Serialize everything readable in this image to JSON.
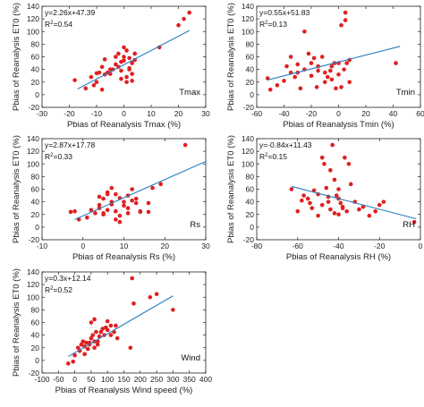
{
  "chart_data": [
    {
      "type": "scatter",
      "variable": "Tmax",
      "xlabel": "Pbias of Reanalysis Tmax (%)",
      "ylabel": "Pbias of Reanalysis ET0 (%)",
      "xlim": [
        -30,
        30
      ],
      "ylim": [
        -20,
        140
      ],
      "xticks": [
        -30,
        -20,
        -10,
        0,
        10,
        20,
        30
      ],
      "yticks": [
        -20,
        0,
        20,
        40,
        60,
        80,
        100,
        120,
        140
      ],
      "equation": "y=2.26x+47.39",
      "r2_text": "R",
      "r2_value": "=0.54",
      "fit": {
        "slope": 2.26,
        "intercept": 47.39,
        "x_range": [
          -17,
          24
        ]
      },
      "series_color": "#e02020",
      "line_color": "#2a7fc0",
      "x": [
        -18,
        -14,
        -12,
        -11,
        -10,
        -10,
        -9,
        -8,
        -7,
        -7,
        -6,
        -5,
        -4,
        -3,
        -3,
        -2,
        -2,
        -1,
        -1,
        0,
        0,
        0,
        1,
        1,
        2,
        2,
        3,
        3,
        3,
        4,
        4,
        -1,
        2,
        13,
        20,
        22,
        24,
        -8,
        1,
        -5
      ],
      "y": [
        23,
        10,
        28,
        15,
        34,
        20,
        35,
        44,
        32,
        56,
        35,
        33,
        40,
        48,
        60,
        44,
        65,
        38,
        52,
        54,
        60,
        75,
        70,
        28,
        40,
        58,
        22,
        33,
        50,
        65,
        55,
        25,
        42,
        75,
        110,
        120,
        130,
        8,
        20,
        40
      ]
    },
    {
      "type": "scatter",
      "variable": "Tmin",
      "xlabel": "Pbias of Reanalysis Tmin (%)",
      "ylabel": "Pbias of Reanalysis ET0 (%)",
      "xlim": [
        -60,
        60
      ],
      "ylim": [
        -20,
        140
      ],
      "xticks": [
        -60,
        -40,
        -20,
        0,
        20,
        40,
        60
      ],
      "yticks": [
        -20,
        0,
        20,
        40,
        60,
        80,
        100,
        120,
        140
      ],
      "equation": "y=0.55x+51.83",
      "r2_text": "R",
      "r2_value": "=0.13",
      "fit": {
        "slope": 0.55,
        "intercept": 51.83,
        "x_range": [
          -52,
          45
        ]
      },
      "series_color": "#e02020",
      "line_color": "#2a7fc0",
      "x": [
        -52,
        -50,
        -45,
        -40,
        -38,
        -35,
        -32,
        -30,
        -28,
        -25,
        -22,
        -20,
        -18,
        -16,
        -15,
        -12,
        -10,
        -8,
        -6,
        -5,
        -3,
        -2,
        0,
        2,
        4,
        5,
        6,
        8,
        -25,
        -35,
        -20,
        -10,
        -5,
        2,
        5,
        42,
        -30,
        -15,
        8,
        0
      ],
      "y": [
        26,
        8,
        15,
        22,
        45,
        35,
        28,
        48,
        10,
        40,
        65,
        30,
        58,
        12,
        38,
        60,
        35,
        28,
        38,
        45,
        50,
        10,
        50,
        12,
        40,
        130,
        50,
        20,
        100,
        60,
        50,
        20,
        24,
        110,
        118,
        50,
        35,
        45,
        55,
        32
      ]
    },
    {
      "type": "scatter",
      "variable": "Rs",
      "xlabel": "Pbias of Reanalysis Rs (%)",
      "ylabel": "Pbias of Reanalysis ET0 (%)",
      "xlim": [
        -10,
        30
      ],
      "ylim": [
        -20,
        140
      ],
      "xticks": [
        -10,
        0,
        10,
        20,
        30
      ],
      "yticks": [
        -20,
        0,
        20,
        40,
        60,
        80,
        100,
        120,
        140
      ],
      "equation": "y=2.87x+17.78",
      "r2_text": "R",
      "r2_value": "=0.33",
      "fit": {
        "slope": 2.87,
        "intercept": 17.78,
        "x_range": [
          -2,
          30
        ]
      },
      "series_color": "#e02020",
      "line_color": "#2a7fc0",
      "x": [
        -3,
        -2,
        -1,
        1,
        2,
        3,
        4,
        4,
        5,
        5,
        6,
        6,
        7,
        7,
        7,
        8,
        8,
        9,
        9,
        10,
        10,
        11,
        11,
        12,
        12,
        13,
        14,
        16,
        16,
        17,
        19,
        25,
        9,
        11,
        4,
        6,
        5,
        8,
        14,
        13
      ],
      "y": [
        24,
        25,
        12,
        15,
        27,
        22,
        30,
        48,
        45,
        20,
        52,
        27,
        36,
        40,
        62,
        52,
        25,
        46,
        18,
        34,
        40,
        22,
        50,
        42,
        60,
        38,
        25,
        24,
        38,
        62,
        68,
        130,
        8,
        30,
        35,
        55,
        22,
        12,
        24,
        45
      ]
    },
    {
      "type": "scatter",
      "variable": "RH",
      "xlabel": "Pbias of Reanalysis RH (%)",
      "ylabel": "Pbias of Reanalysis ET0 (%)",
      "xlim": [
        -80,
        0
      ],
      "ylim": [
        -20,
        140
      ],
      "xticks": [
        -80,
        -60,
        -40,
        -20,
        0
      ],
      "yticks": [
        -20,
        0,
        20,
        40,
        60,
        80,
        100,
        120,
        140
      ],
      "equation": "y=-0.84x+11.43",
      "r2_text": "R",
      "r2_value": "=0.15",
      "fit": {
        "slope": -0.84,
        "intercept": 11.43,
        "x_range": [
          -63,
          -2
        ]
      },
      "series_color": "#e02020",
      "line_color": "#2a7fc0",
      "x": [
        -63,
        -60,
        -58,
        -57,
        -55,
        -54,
        -53,
        -52,
        -50,
        -50,
        -48,
        -47,
        -46,
        -45,
        -44,
        -43,
        -42,
        -42,
        -41,
        -40,
        -40,
        -39,
        -38,
        -37,
        -36,
        -35,
        -34,
        -32,
        -30,
        -28,
        -25,
        -22,
        -20,
        -18,
        -3,
        -44,
        -48,
        -40,
        -38,
        -45
      ],
      "y": [
        60,
        25,
        42,
        50,
        45,
        38,
        30,
        58,
        52,
        18,
        35,
        100,
        62,
        40,
        28,
        130,
        75,
        22,
        50,
        20,
        45,
        38,
        30,
        110,
        25,
        100,
        68,
        40,
        28,
        32,
        18,
        25,
        35,
        40,
        8,
        90,
        110,
        60,
        32,
        48
      ]
    },
    {
      "type": "scatter",
      "variable": "Wind",
      "xlabel": "Pbias of Reanalysis Wind speed (%)",
      "ylabel": "Pbias of Reanalysis ET0 (%)",
      "xlim": [
        -100,
        400
      ],
      "ylim": [
        -20,
        140
      ],
      "xticks": [
        -100,
        -50,
        0,
        50,
        100,
        150,
        200,
        250,
        300,
        350,
        400
      ],
      "yticks": [
        -20,
        0,
        20,
        40,
        60,
        80,
        100,
        120,
        140
      ],
      "equation": "y=0.3x+12.14",
      "r2_text": "R",
      "r2_value": "=0.52",
      "fit": {
        "slope": 0.3,
        "intercept": 12.14,
        "x_range": [
          -20,
          300
        ]
      },
      "series_color": "#e02020",
      "line_color": "#2a7fc0",
      "x": [
        -20,
        -5,
        0,
        10,
        15,
        20,
        25,
        30,
        30,
        35,
        40,
        45,
        50,
        50,
        55,
        60,
        60,
        65,
        70,
        75,
        80,
        85,
        90,
        95,
        100,
        100,
        110,
        120,
        125,
        130,
        170,
        175,
        180,
        250,
        300,
        60,
        45,
        230,
        70,
        110
      ],
      "y": [
        -5,
        -2,
        8,
        20,
        15,
        25,
        30,
        10,
        22,
        28,
        18,
        25,
        35,
        60,
        40,
        20,
        65,
        45,
        30,
        38,
        45,
        50,
        40,
        52,
        48,
        62,
        55,
        45,
        55,
        35,
        20,
        130,
        90,
        105,
        80,
        30,
        28,
        100,
        25,
        40
      ]
    }
  ]
}
